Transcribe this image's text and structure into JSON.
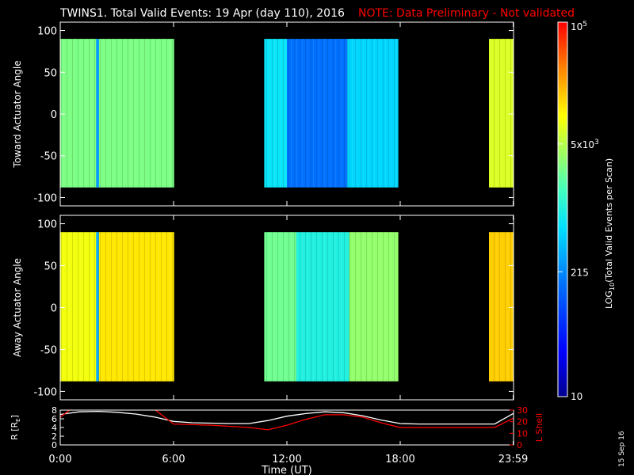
{
  "header": {
    "title": "TWINS1. Total Valid Events: 19 Apr (day 110), 2016",
    "note": "NOTE: Data Preliminary - Not validated"
  },
  "colorbar": {
    "label_main": "LOG",
    "label_sub": "10",
    "label_rest": "(Total Valid Events per Scan)",
    "ticks": [
      {
        "text": "10",
        "value": 10
      },
      {
        "text": "215",
        "value": 215
      },
      {
        "text": "5x10",
        "sup": "3",
        "value": 5000
      },
      {
        "text": "10",
        "sup": "5",
        "value": 100000
      }
    ],
    "range": [
      10,
      100000
    ],
    "scale": "log"
  },
  "footer_date": "15 Sep 16",
  "chart_data": [
    {
      "type": "heatmap",
      "ylabel": "Toward Actuator Angle",
      "ylim": [
        -110,
        110
      ],
      "yticks": [
        "100",
        "50",
        "0",
        "-50",
        "-100"
      ],
      "yticks_values": [
        100,
        50,
        0,
        -50,
        -100
      ],
      "xlim": [
        0,
        24
      ],
      "angle_range": [
        -88,
        90
      ],
      "data_intervals_hours": [
        [
          0.0,
          6.03
        ],
        [
          10.8,
          17.9
        ],
        [
          22.7,
          23.98
        ]
      ],
      "segments": [
        {
          "x": [
            0.0,
            6.03
          ],
          "log_value": 3.45
        },
        {
          "x": [
            1.9,
            2.05
          ],
          "log_value": 2.4
        },
        {
          "x": [
            10.8,
            12.0
          ],
          "log_value": 2.85
        },
        {
          "x": [
            12.0,
            15.2
          ],
          "log_value": 2.2
        },
        {
          "x": [
            15.2,
            17.9
          ],
          "log_value": 2.75
        },
        {
          "x": [
            22.7,
            23.98
          ],
          "log_value": 3.85
        }
      ]
    },
    {
      "type": "heatmap",
      "ylabel": "Away Actuator Angle",
      "ylim": [
        -110,
        110
      ],
      "yticks": [
        "100",
        "50",
        "0",
        "-50",
        "-100"
      ],
      "yticks_values": [
        100,
        50,
        0,
        -50,
        -100
      ],
      "xlim": [
        0,
        24
      ],
      "angle_range": [
        -88,
        90
      ],
      "segments": [
        {
          "x": [
            0.0,
            2.0
          ],
          "log_value": 3.95
        },
        {
          "x": [
            1.9,
            2.05
          ],
          "log_value": 2.5
        },
        {
          "x": [
            2.05,
            6.03
          ],
          "log_value": 4.1
        },
        {
          "x": [
            10.8,
            12.5
          ],
          "log_value": 3.4
        },
        {
          "x": [
            12.5,
            15.3
          ],
          "log_value": 3.0
        },
        {
          "x": [
            15.3,
            17.9
          ],
          "log_value": 3.55
        },
        {
          "x": [
            22.7,
            23.98
          ],
          "log_value": 4.2
        }
      ]
    },
    {
      "type": "line",
      "ylabel": "R [R",
      "ylabel_sub": "E",
      "ylabel_end": "]",
      "ylabel_right": "L Shell",
      "ylim": [
        0,
        8
      ],
      "yticks": [
        "8",
        "6",
        "4",
        "2",
        "0"
      ],
      "ylim_right": [
        0,
        30
      ],
      "yticks_right": [
        "30",
        "20",
        "10",
        "0"
      ],
      "xlim": [
        0,
        24
      ],
      "xticks": [
        "0:00",
        "6:00",
        "12:00",
        "18:00",
        "23:59"
      ],
      "xticks_hours": [
        0,
        6,
        12,
        18,
        23.98
      ],
      "xlabel": "Time (UT)",
      "series": [
        {
          "color": "#ffffff",
          "x": [
            0,
            1,
            2,
            3,
            4,
            5,
            6,
            7,
            8,
            9,
            10,
            11,
            12,
            13,
            14,
            15,
            16,
            17,
            18,
            19,
            20,
            21,
            22,
            23,
            23.98
          ],
          "y": [
            7.0,
            7.6,
            7.7,
            7.5,
            7.1,
            6.4,
            5.4,
            5.1,
            5.0,
            4.9,
            4.9,
            5.6,
            6.6,
            7.2,
            7.6,
            7.4,
            6.7,
            5.7,
            4.9,
            4.8,
            4.8,
            4.8,
            4.8,
            4.8,
            7.2
          ]
        },
        {
          "color": "#ff0000",
          "axis": "right",
          "x": [
            0,
            0.5,
            1.0,
            4.8,
            5.2,
            6.0,
            8.0,
            10.0,
            11.0,
            12.0,
            13.0,
            14.0,
            15.0,
            16.0,
            17.0,
            18.0,
            20.0,
            22.0,
            23.0,
            23.98
          ],
          "y": [
            24,
            30,
            33,
            33,
            28,
            18,
            17,
            15,
            13,
            17,
            22,
            26,
            26,
            24,
            19,
            15,
            15,
            15,
            15,
            23
          ]
        }
      ]
    }
  ]
}
